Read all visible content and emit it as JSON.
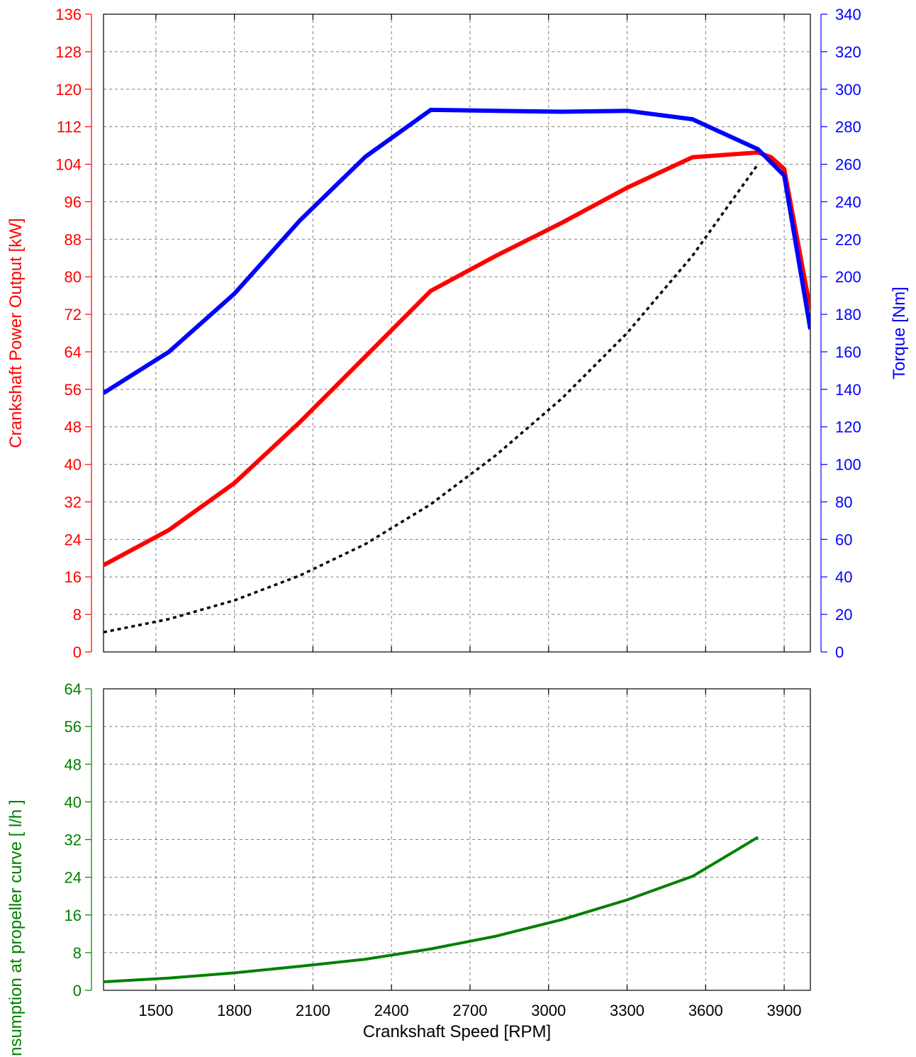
{
  "chart_data": [
    {
      "type": "line",
      "xlabel": "",
      "x_ticks": [
        1500,
        1800,
        2100,
        2400,
        2700,
        3000,
        3300,
        3600,
        3900
      ],
      "xlim": [
        1300,
        4000
      ],
      "grid": true,
      "left_axis": {
        "label": "Crankshaft Power Output [kW]",
        "color": "#ff0000",
        "ylim": [
          0,
          136
        ],
        "ticks": [
          0,
          8,
          16,
          24,
          32,
          40,
          48,
          56,
          64,
          72,
          80,
          88,
          96,
          104,
          112,
          120,
          128,
          136
        ]
      },
      "right_axis": {
        "label": "Torque [Nm]",
        "color": "#0000ff",
        "ylim": [
          0,
          340
        ],
        "ticks": [
          0,
          20,
          40,
          60,
          80,
          100,
          120,
          140,
          160,
          180,
          200,
          220,
          240,
          260,
          280,
          300,
          320,
          340
        ]
      },
      "series": [
        {
          "color": "#ff0000",
          "axis": "left",
          "style": "solid",
          "x": [
            1300,
            1550,
            1800,
            2050,
            2300,
            2550,
            2800,
            3050,
            3300,
            3550,
            3800,
            3850,
            3900,
            4000
          ],
          "y": [
            18.5,
            26,
            36,
            49,
            63,
            77,
            84.5,
            91.5,
            99,
            105.5,
            106.5,
            105.5,
            103,
            73
          ]
        },
        {
          "color": "#0000ff",
          "axis": "right",
          "style": "solid",
          "x": [
            1300,
            1550,
            1800,
            2050,
            2300,
            2550,
            2800,
            3050,
            3300,
            3550,
            3800,
            3900,
            4000
          ],
          "y": [
            138,
            160,
            191,
            230,
            264,
            289,
            288.5,
            288,
            288.5,
            284,
            268,
            254,
            172
          ]
        },
        {
          "color": "#000000",
          "axis": "left",
          "style": "dotted",
          "x": [
            1300,
            1550,
            1800,
            2050,
            2300,
            2550,
            2800,
            3050,
            3300,
            3550,
            3800
          ],
          "y": [
            4.2,
            7,
            11,
            16.3,
            23,
            31.5,
            42,
            54,
            68,
            84.5,
            104
          ]
        }
      ]
    },
    {
      "type": "line",
      "xlabel": "Crankshaft Speed [RPM]",
      "x_ticks": [
        1500,
        1800,
        2100,
        2400,
        2700,
        3000,
        3300,
        3600,
        3900
      ],
      "xlim": [
        1300,
        4000
      ],
      "grid": true,
      "left_axis": {
        "label": "fuel consumption at propeller curve [ l/h ]",
        "color": "#008000",
        "ylim": [
          0,
          64
        ],
        "ticks": [
          0,
          8,
          16,
          24,
          32,
          40,
          48,
          56,
          64
        ]
      },
      "series": [
        {
          "color": "#008000",
          "axis": "left",
          "style": "solid",
          "x": [
            1300,
            1550,
            1800,
            2050,
            2300,
            2550,
            2800,
            3050,
            3300,
            3550,
            3800
          ],
          "y": [
            1.8,
            2.6,
            3.7,
            5.1,
            6.6,
            8.8,
            11.5,
            15,
            19.2,
            24.2,
            32.5
          ]
        }
      ]
    }
  ]
}
